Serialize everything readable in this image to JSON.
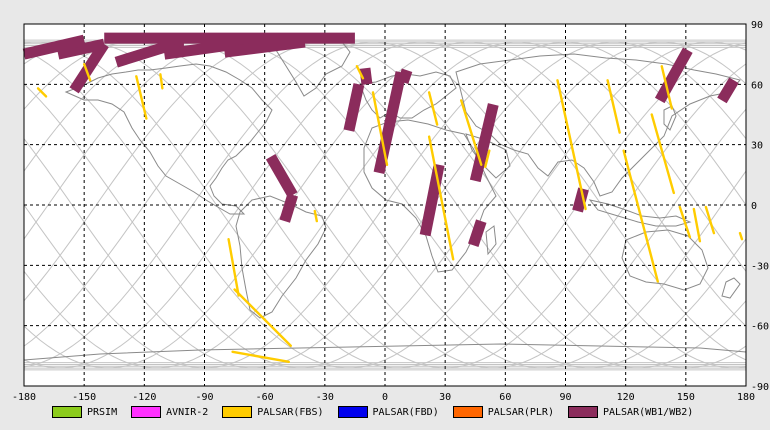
{
  "map": {
    "lon_range": [
      -180,
      180
    ],
    "lat_range": [
      -90,
      90
    ],
    "lon_ticks": [
      "-180",
      "-150",
      "-120",
      "-90",
      "-60",
      "-30",
      "0",
      "30",
      "60",
      "90",
      "120",
      "150",
      "180"
    ],
    "lat_ticks": [
      "90",
      "60",
      "30",
      "0",
      "-30",
      "-60",
      "-90"
    ],
    "grid": "dashed",
    "colors": {
      "background": "#ffffff",
      "land_outline": "#888888",
      "orbit": "#c0c0c0",
      "frame": "#000000"
    }
  },
  "legend": {
    "items": [
      {
        "label": "PRSIM",
        "color": "#8ccc1c"
      },
      {
        "label": "AVNIR-2",
        "color": "#ff30ff"
      },
      {
        "label": "PALSAR(FBS)",
        "color": "#ffcc00"
      },
      {
        "label": "PALSAR(FBD)",
        "color": "#0000ee"
      },
      {
        "label": "PALSAR(PLR)",
        "color": "#ff6600"
      },
      {
        "label": "PALSAR(WB1/WB2)",
        "color": "#8b2c5c"
      }
    ]
  },
  "coverage": {
    "wb_swaths": [
      {
        "from": [
          -103,
          83
        ],
        "to": [
          -103,
          77
        ],
        "width": 0
      },
      {
        "from": [
          -163,
          75
        ],
        "to": [
          -140,
          80
        ],
        "width": 0
      },
      {
        "from": [
          -134,
          71
        ],
        "to": [
          -105,
          80
        ],
        "width": 0
      },
      {
        "from": [
          -110,
          75
        ],
        "to": [
          -60,
          82
        ],
        "width": 0
      },
      {
        "from": [
          -80,
          76
        ],
        "to": [
          -40,
          81
        ],
        "width": 0
      },
      {
        "from": [
          -180,
          75
        ],
        "to": [
          -150,
          82
        ],
        "width": 0
      },
      {
        "from": [
          -155,
          57
        ],
        "to": [
          -140,
          80
        ],
        "width": 0
      },
      {
        "from": [
          -57,
          24
        ],
        "to": [
          -46,
          5
        ],
        "width": 0
      },
      {
        "from": [
          -50,
          -8
        ],
        "to": [
          -46,
          5
        ],
        "width": 0
      },
      {
        "from": [
          -13,
          60
        ],
        "to": [
          -18,
          37
        ],
        "width": 0
      },
      {
        "from": [
          8,
          66
        ],
        "to": [
          -3,
          16
        ],
        "width": 0
      },
      {
        "from": [
          27,
          20
        ],
        "to": [
          20,
          -15
        ],
        "width": 0
      },
      {
        "from": [
          54,
          50
        ],
        "to": [
          45,
          12
        ],
        "width": 0
      },
      {
        "from": [
          48,
          -8
        ],
        "to": [
          44,
          -20
        ],
        "width": 0
      },
      {
        "from": [
          99,
          8
        ],
        "to": [
          96,
          -3
        ],
        "width": 0
      },
      {
        "from": [
          151,
          77
        ],
        "to": [
          137,
          52
        ],
        "width": 0
      },
      {
        "from": [
          174,
          62
        ],
        "to": [
          168,
          52
        ],
        "width": 0
      },
      {
        "from": [
          -10,
          68
        ],
        "to": [
          -9,
          60
        ],
        "width": 0
      },
      {
        "from": [
          11,
          67
        ],
        "to": [
          9,
          61
        ],
        "width": 0
      },
      {
        "from": [
          -140,
          83
        ],
        "to": [
          -15,
          83
        ],
        "width": 0
      }
    ],
    "fbs_tracks": [
      {
        "from": [
          -173,
          58
        ],
        "to": [
          -169,
          54
        ]
      },
      {
        "from": [
          -150,
          70
        ],
        "to": [
          -147,
          62
        ]
      },
      {
        "from": [
          -124,
          64
        ],
        "to": [
          -119,
          43
        ]
      },
      {
        "from": [
          -112,
          65
        ],
        "to": [
          -111,
          58
        ]
      },
      {
        "from": [
          -78,
          -17
        ],
        "to": [
          -73,
          -45
        ]
      },
      {
        "from": [
          -75,
          -42
        ],
        "to": [
          -47,
          -70
        ]
      },
      {
        "from": [
          -76,
          -73
        ],
        "to": [
          -48,
          -78
        ]
      },
      {
        "from": [
          -35,
          -3
        ],
        "to": [
          -34,
          -8
        ]
      },
      {
        "from": [
          -14,
          69
        ],
        "to": [
          -11,
          63
        ]
      },
      {
        "from": [
          -6,
          56
        ],
        "to": [
          1,
          20
        ]
      },
      {
        "from": [
          22,
          56
        ],
        "to": [
          26,
          40
        ]
      },
      {
        "from": [
          22,
          34
        ],
        "to": [
          34,
          -27
        ]
      },
      {
        "from": [
          38,
          52
        ],
        "to": [
          48,
          20
        ]
      },
      {
        "from": [
          52,
          27
        ],
        "to": [
          50,
          19
        ]
      },
      {
        "from": [
          86,
          62
        ],
        "to": [
          100,
          -2
        ]
      },
      {
        "from": [
          111,
          62
        ],
        "to": [
          117,
          36
        ]
      },
      {
        "from": [
          119,
          27
        ],
        "to": [
          136,
          -38
        ]
      },
      {
        "from": [
          133,
          45
        ],
        "to": [
          144,
          6
        ]
      },
      {
        "from": [
          138,
          69
        ],
        "to": [
          143,
          48
        ]
      },
      {
        "from": [
          147,
          -1
        ],
        "to": [
          152,
          -16
        ]
      },
      {
        "from": [
          154,
          -2
        ],
        "to": [
          157,
          -18
        ]
      },
      {
        "from": [
          160,
          -1
        ],
        "to": [
          164,
          -14
        ]
      },
      {
        "from": [
          177,
          -14
        ],
        "to": [
          178,
          -17
        ]
      }
    ]
  }
}
